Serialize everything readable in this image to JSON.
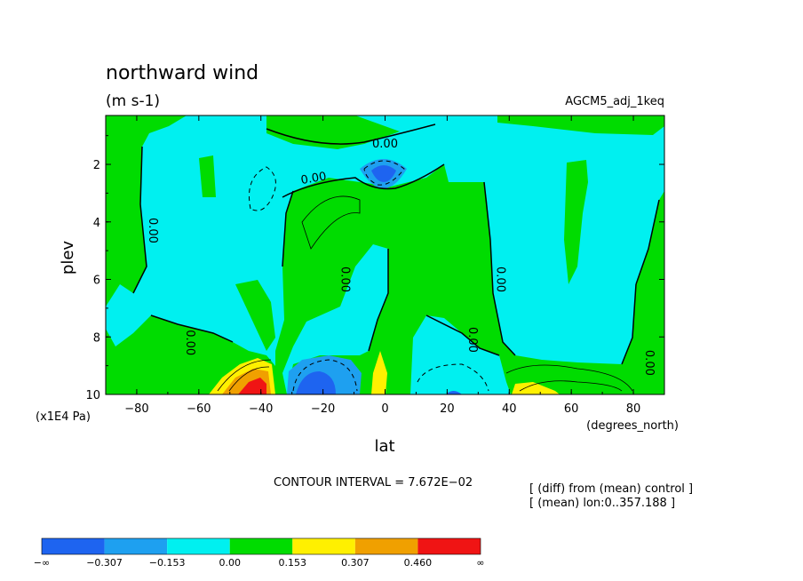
{
  "chart_data": {
    "type": "contour",
    "title": "northward wind",
    "units": "(m s-1)",
    "dataset": "AGCM5_adj_1keq",
    "xlabel": "lat",
    "x_unit": "(degrees_north)",
    "ylabel": "plev",
    "y_unit": "(x1E4 Pa)",
    "xlim": [
      -90,
      90
    ],
    "ylim": [
      10,
      0.3
    ],
    "x_ticks": [
      -80,
      -60,
      -40,
      -20,
      0,
      20,
      40,
      60,
      80
    ],
    "x_tick_labels": [
      "−80",
      "−60",
      "−40",
      "−20",
      "0",
      "20",
      "40",
      "60",
      "80"
    ],
    "y_ticks": [
      2,
      4,
      6,
      8,
      10
    ],
    "y_tick_labels": [
      "2",
      "4",
      "6",
      "8",
      "10"
    ],
    "contour_interval_text": "CONTOUR INTERVAL = 7.672E−02",
    "notes": [
      "[ (diff) from (mean) control ]",
      "[ (mean) lon:0..357.188 ]"
    ],
    "contour_labels": [
      {
        "text": "0.00",
        "lat": 0,
        "plev": 1.3,
        "rotate": 0
      },
      {
        "text": "0.00",
        "lat": -23,
        "plev": 2.5,
        "rotate": -10
      },
      {
        "text": "0.00",
        "lat": -75,
        "plev": 4.3,
        "rotate": 90
      },
      {
        "text": "0.00",
        "lat": -13,
        "plev": 6.0,
        "rotate": 90
      },
      {
        "text": "0.00",
        "lat": 37,
        "plev": 6.0,
        "rotate": 90
      },
      {
        "text": "0.00",
        "lat": -63,
        "plev": 8.2,
        "rotate": 90
      },
      {
        "text": "0.00",
        "lat": 28,
        "plev": 8.1,
        "rotate": 90
      },
      {
        "text": "0.00",
        "lat": 85,
        "plev": 8.9,
        "rotate": 90
      }
    ],
    "colorbar": {
      "colors": [
        "#1e64f0",
        "#1ea0f0",
        "#00f0f0",
        "#00dc00",
        "#fff000",
        "#f0a000",
        "#f01414"
      ],
      "labels": [
        "−∞",
        "−0.307",
        "−0.153",
        "0.00",
        "0.153",
        "0.307",
        "0.460",
        "∞"
      ]
    }
  }
}
